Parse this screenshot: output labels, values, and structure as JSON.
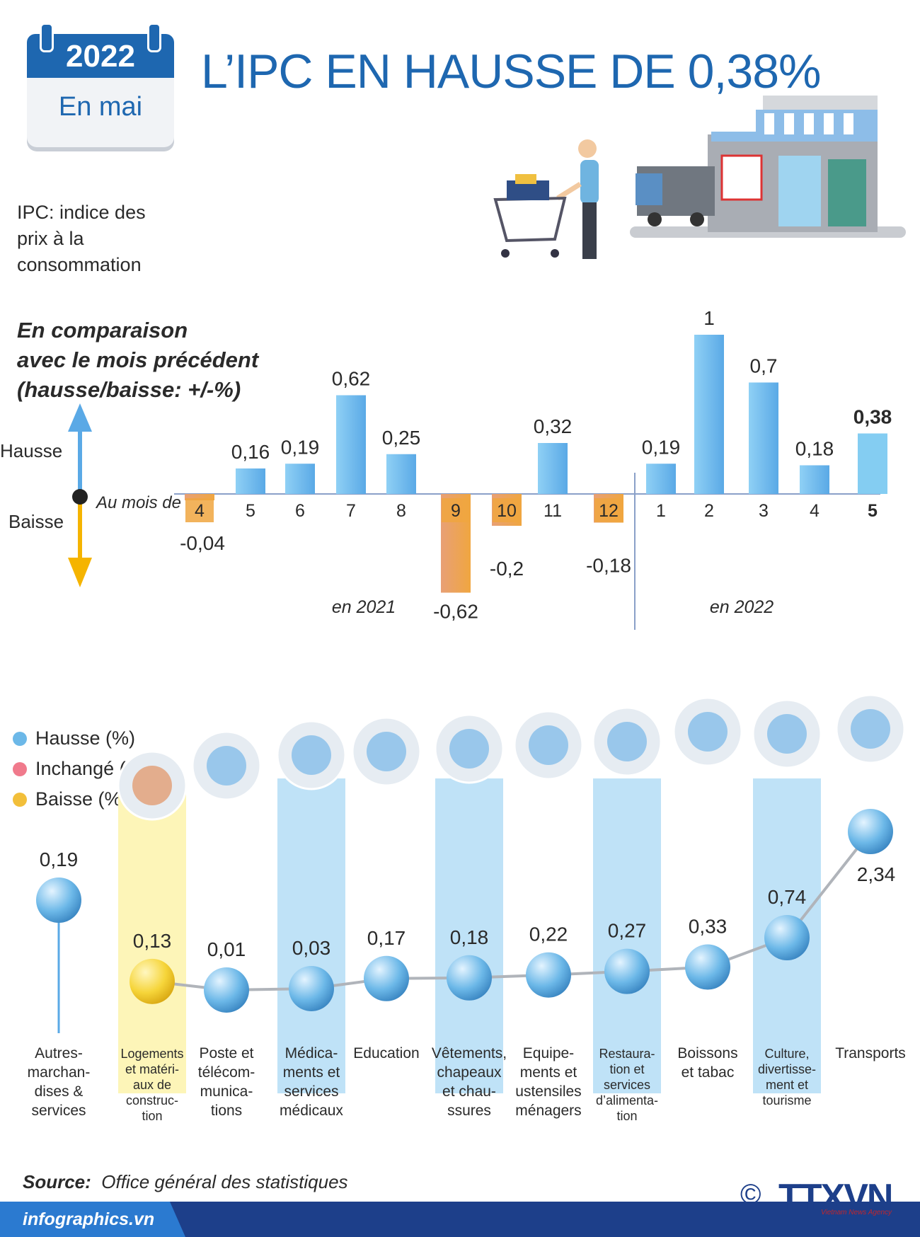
{
  "header": {
    "year": "2022",
    "month": "En mai",
    "title": "L’IPC EN HAUSSE DE 0,38%",
    "ipc_definition": [
      "IPC: indice des",
      "prix à la",
      "consommation"
    ],
    "comparison_heading": [
      "En comparaison",
      "avec le mois précédent",
      "(hausse/baisse: +/-%)"
    ]
  },
  "direction_legend": {
    "up": "Hausse",
    "down": "Baisse",
    "axis_label": "Au mois de"
  },
  "chart_data": [
    {
      "type": "bar",
      "title": "",
      "categories": [
        "4",
        "5",
        "6",
        "7",
        "8",
        "9",
        "10",
        "11",
        "12",
        "1",
        "2",
        "3",
        "4",
        "5"
      ],
      "value_labels": [
        "-0,04",
        "0,16",
        "0,19",
        "0,62",
        "0,25",
        "-0,62",
        "-0,2",
        "0,32",
        "-0,18",
        "0,19",
        "1",
        "0,7",
        "0,18",
        "0,38"
      ],
      "values": [
        -0.04,
        0.16,
        0.19,
        0.62,
        0.25,
        -0.62,
        -0.2,
        0.32,
        -0.18,
        0.19,
        1,
        0.7,
        0.18,
        0.38
      ],
      "year_groups": [
        {
          "label": "en 2021",
          "months": 9
        },
        {
          "label": "en 2022",
          "months": 5
        }
      ],
      "highlight_index": 13,
      "colors": {
        "up": "#5aa9e6",
        "down": "#f0a640",
        "highlight": "#84cdf2"
      }
    },
    {
      "type": "line",
      "title": "",
      "categories": [
        "Autres-marchan-dises & services",
        "Logements et matéri-aux de construc-tion",
        "Poste et télécom-munica-tions",
        "Médica-ments et services médicaux",
        "Education",
        "Vêtements, chapeaux et chau-ssures",
        "Equipe-ments et ustensiles ménagers",
        "Restaura-tion et services d’alimenta-tion",
        "Boissons et tabac",
        "Culture, divertisse-ment et tourisme",
        "Transports"
      ],
      "category_lines": [
        [
          "Autres-",
          "marchan-",
          "dises &",
          "services"
        ],
        [
          "Logements",
          "et matéri-",
          "aux de",
          "construc-",
          "tion"
        ],
        [
          "Poste et",
          "télécom-",
          "munica-",
          "tions"
        ],
        [
          "Médica-",
          "ments et",
          "services",
          "médicaux"
        ],
        [
          "Education"
        ],
        [
          "Vêtements,",
          "chapeaux",
          "et chau-",
          "ssures"
        ],
        [
          "Equipe-",
          "ments et",
          "ustensiles",
          "ménagers"
        ],
        [
          "Restaura-",
          "tion et",
          "services",
          "d’alimenta-",
          "tion"
        ],
        [
          "Boissons",
          "et tabac"
        ],
        [
          "Culture,",
          "divertisse-",
          "ment et",
          "tourisme"
        ],
        [
          "Transports"
        ]
      ],
      "value_labels": [
        "0,19",
        "0,13",
        "0,01",
        "0,03",
        "0,17",
        "0,18",
        "0,22",
        "0,27",
        "0,33",
        "0,74",
        "2,34"
      ],
      "values": [
        0.19,
        0.13,
        0.01,
        0.03,
        0.17,
        0.18,
        0.22,
        0.27,
        0.33,
        0.74,
        2.34
      ],
      "status": [
        "hausse",
        "baisse",
        "hausse",
        "hausse",
        "hausse",
        "hausse",
        "hausse",
        "hausse",
        "hausse",
        "hausse",
        "hausse"
      ],
      "icons": [
        "none",
        "house-icon",
        "antenna-icon",
        "pills-icon",
        "graduation-cap-icon",
        "clothes-icon",
        "washing-machine-icon",
        "food-plate-icon",
        "drink-cigarette-icon",
        "clapperboard-icon",
        "traffic-light-icon"
      ],
      "legend": [
        {
          "label": "Hausse (%)",
          "color": "#6cb8e8"
        },
        {
          "label": "Inchangé (%)",
          "color": "#f07a8c"
        },
        {
          "label": "Baisse (%)",
          "color": "#f2bf3a"
        }
      ]
    }
  ],
  "source": {
    "label": "Source:",
    "text": "Office général des statistiques"
  },
  "footer": {
    "site": "infographics.vn",
    "copyright": "©",
    "agency": "TTXVN",
    "agency_sub": "Vietnam News Agency"
  }
}
